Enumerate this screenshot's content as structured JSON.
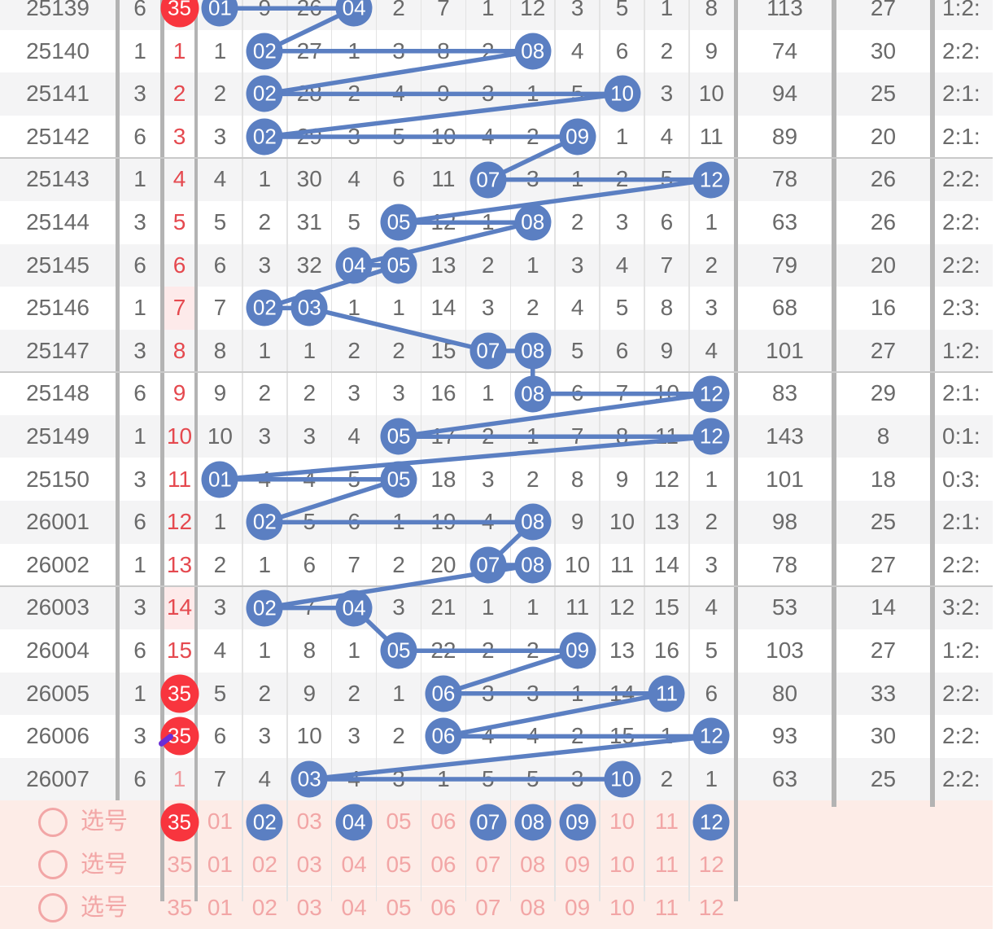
{
  "app_type": "lottery-trend-chart",
  "colors": {
    "line_blue": "#5b7fc2",
    "ball_blue": "#5b7fc2",
    "ball_red": "#f8353e",
    "red_text": "#e5494f",
    "faded_red_text": "#f09a9e",
    "pink_bg": "#fdece7",
    "pink_text": "#f2a6a6",
    "row_stripe": "#f4f4f5",
    "row_white": "#ffffff",
    "grid_dark": "#b3b3b3",
    "grid_light": "#e3e3e3",
    "group_line": "#c9c9c9",
    "text_gray": "#6a6a6a",
    "highlight_cell_bg": "#fdeaea",
    "mark_purple": "#6b2ed6"
  },
  "rows": [
    {
      "period": "25139",
      "day": "6",
      "front": "35",
      "front_style": "circled",
      "cells": [
        "01",
        "9",
        "26",
        "04",
        "2",
        "7",
        "1",
        "12",
        "3",
        "5",
        "1",
        "8"
      ],
      "drawn": [
        1,
        4
      ],
      "stats": [
        "113",
        "27",
        "1:2:"
      ]
    },
    {
      "period": "25140",
      "day": "1",
      "front": "1",
      "front_style": "plain",
      "cells": [
        "1",
        "02",
        "27",
        "1",
        "3",
        "8",
        "2",
        "08",
        "4",
        "6",
        "2",
        "9"
      ],
      "drawn": [
        2,
        8
      ],
      "stats": [
        "74",
        "30",
        "2:2:"
      ]
    },
    {
      "period": "25141",
      "day": "3",
      "front": "2",
      "front_style": "plain",
      "cells": [
        "2",
        "02",
        "28",
        "2",
        "4",
        "9",
        "3",
        "1",
        "5",
        "10",
        "3",
        "10"
      ],
      "drawn": [
        2,
        10
      ],
      "stats": [
        "94",
        "25",
        "2:1:"
      ]
    },
    {
      "period": "25142",
      "day": "6",
      "front": "3",
      "front_style": "plain",
      "cells": [
        "3",
        "02",
        "29",
        "3",
        "5",
        "10",
        "4",
        "2",
        "09",
        "1",
        "4",
        "11"
      ],
      "drawn": [
        2,
        9
      ],
      "stats": [
        "89",
        "20",
        "2:1:"
      ]
    },
    {
      "period": "25143",
      "day": "1",
      "front": "4",
      "front_style": "plain",
      "cells": [
        "4",
        "1",
        "30",
        "4",
        "6",
        "11",
        "07",
        "3",
        "1",
        "2",
        "5",
        "12"
      ],
      "drawn": [
        7,
        12
      ],
      "stats": [
        "78",
        "26",
        "2:2:"
      ]
    },
    {
      "period": "25144",
      "day": "3",
      "front": "5",
      "front_style": "plain",
      "cells": [
        "5",
        "2",
        "31",
        "5",
        "05",
        "12",
        "1",
        "08",
        "2",
        "3",
        "6",
        "1"
      ],
      "drawn": [
        5,
        8
      ],
      "stats": [
        "63",
        "26",
        "2:2:"
      ]
    },
    {
      "period": "25145",
      "day": "6",
      "front": "6",
      "front_style": "plain",
      "cells": [
        "6",
        "3",
        "32",
        "04",
        "05",
        "13",
        "2",
        "1",
        "3",
        "4",
        "7",
        "2"
      ],
      "drawn": [
        4,
        5
      ],
      "stats": [
        "79",
        "20",
        "2:2:"
      ]
    },
    {
      "period": "25146",
      "day": "1",
      "front": "7",
      "front_style": "highlight",
      "cells": [
        "7",
        "02",
        "03",
        "1",
        "1",
        "14",
        "3",
        "2",
        "4",
        "5",
        "8",
        "3"
      ],
      "drawn": [
        2,
        3
      ],
      "stats": [
        "68",
        "16",
        "2:3:"
      ]
    },
    {
      "period": "25147",
      "day": "3",
      "front": "8",
      "front_style": "plain",
      "cells": [
        "8",
        "1",
        "1",
        "2",
        "2",
        "15",
        "07",
        "08",
        "5",
        "6",
        "9",
        "4"
      ],
      "drawn": [
        7,
        8
      ],
      "stats": [
        "101",
        "27",
        "1:2:"
      ]
    },
    {
      "period": "25148",
      "day": "6",
      "front": "9",
      "front_style": "plain",
      "cells": [
        "9",
        "2",
        "2",
        "3",
        "3",
        "16",
        "1",
        "08",
        "6",
        "7",
        "10",
        "12"
      ],
      "drawn": [
        8,
        12
      ],
      "stats": [
        "83",
        "29",
        "2:1:"
      ]
    },
    {
      "period": "25149",
      "day": "1",
      "front": "10",
      "front_style": "plain",
      "cells": [
        "10",
        "3",
        "3",
        "4",
        "05",
        "17",
        "2",
        "1",
        "7",
        "8",
        "11",
        "12"
      ],
      "drawn": [
        5,
        12
      ],
      "stats": [
        "143",
        "8",
        "0:1:"
      ]
    },
    {
      "period": "25150",
      "day": "3",
      "front": "11",
      "front_style": "plain",
      "cells": [
        "01",
        "4",
        "4",
        "5",
        "05",
        "18",
        "3",
        "2",
        "8",
        "9",
        "12",
        "1"
      ],
      "drawn": [
        1,
        5
      ],
      "stats": [
        "101",
        "18",
        "0:3:"
      ]
    },
    {
      "period": "26001",
      "day": "6",
      "front": "12",
      "front_style": "plain",
      "cells": [
        "1",
        "02",
        "5",
        "6",
        "1",
        "19",
        "4",
        "08",
        "9",
        "10",
        "13",
        "2"
      ],
      "drawn": [
        2,
        8
      ],
      "stats": [
        "98",
        "25",
        "2:1:"
      ]
    },
    {
      "period": "26002",
      "day": "1",
      "front": "13",
      "front_style": "plain",
      "cells": [
        "2",
        "1",
        "6",
        "7",
        "2",
        "20",
        "07",
        "08",
        "10",
        "11",
        "14",
        "3"
      ],
      "drawn": [
        7,
        8
      ],
      "stats": [
        "78",
        "27",
        "2:2:"
      ]
    },
    {
      "period": "26003",
      "day": "3",
      "front": "14",
      "front_style": "highlight",
      "cells": [
        "3",
        "02",
        "7",
        "04",
        "3",
        "21",
        "1",
        "1",
        "11",
        "12",
        "15",
        "4"
      ],
      "drawn": [
        2,
        4
      ],
      "stats": [
        "53",
        "14",
        "3:2:"
      ]
    },
    {
      "period": "26004",
      "day": "6",
      "front": "15",
      "front_style": "plain",
      "cells": [
        "4",
        "1",
        "8",
        "1",
        "05",
        "22",
        "2",
        "2",
        "09",
        "13",
        "16",
        "5"
      ],
      "drawn": [
        5,
        9
      ],
      "stats": [
        "103",
        "27",
        "1:2:"
      ]
    },
    {
      "period": "26005",
      "day": "1",
      "front": "35",
      "front_style": "circled",
      "cells": [
        "5",
        "2",
        "9",
        "2",
        "1",
        "06",
        "3",
        "3",
        "1",
        "14",
        "11",
        "6"
      ],
      "drawn": [
        6,
        11
      ],
      "stats": [
        "80",
        "33",
        "2:2:"
      ]
    },
    {
      "period": "26006",
      "day": "3",
      "front": "35",
      "front_style": "circled-marked",
      "cells": [
        "6",
        "3",
        "10",
        "3",
        "2",
        "06",
        "4",
        "4",
        "2",
        "15",
        "1",
        "12"
      ],
      "drawn": [
        6,
        12
      ],
      "stats": [
        "93",
        "30",
        "2:2:"
      ]
    },
    {
      "period": "26007",
      "day": "6",
      "front": "1",
      "front_style": "faded",
      "cells": [
        "7",
        "4",
        "03",
        "4",
        "3",
        "1",
        "5",
        "5",
        "3",
        "10",
        "2",
        "1"
      ],
      "drawn": [
        3,
        10
      ],
      "stats": [
        "63",
        "25",
        "2:2:"
      ]
    }
  ],
  "footer_rows": [
    {
      "label": "选号",
      "front": "35",
      "front_circled": true,
      "balls": [
        "01",
        "02",
        "03",
        "04",
        "05",
        "06",
        "07",
        "08",
        "09",
        "10",
        "11",
        "12"
      ],
      "selected_blue": [
        2,
        4,
        7,
        8,
        9,
        12
      ]
    },
    {
      "label": "选号",
      "front": "35",
      "front_circled": false,
      "balls": [
        "01",
        "02",
        "03",
        "04",
        "05",
        "06",
        "07",
        "08",
        "09",
        "10",
        "11",
        "12"
      ],
      "selected_blue": []
    },
    {
      "label": "选号",
      "front": "35",
      "front_circled": false,
      "balls": [
        "01",
        "02",
        "03",
        "04",
        "05",
        "06",
        "07",
        "08",
        "09",
        "10",
        "11",
        "12"
      ],
      "selected_blue": []
    }
  ]
}
